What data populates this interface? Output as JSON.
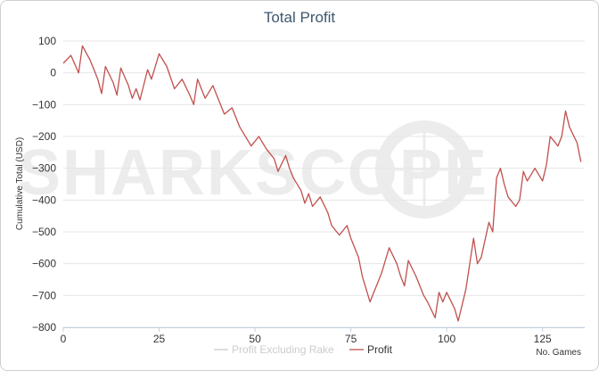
{
  "chart_data": {
    "type": "line",
    "title": "Total Profit",
    "ylabel": "Cumulative Total (USD)",
    "xlabel": "No. Games",
    "watermark": "SHARKSCOPE",
    "xlim": [
      0,
      136
    ],
    "ylim": [
      -800,
      100
    ],
    "xticks": [
      0,
      25,
      50,
      75,
      100,
      125
    ],
    "yticks": [
      100,
      0,
      -100,
      -200,
      -300,
      -400,
      -500,
      -600,
      -700,
      -800
    ],
    "xtick_labels": [
      "0",
      "25",
      "50",
      "75",
      "100",
      "125"
    ],
    "ytick_labels": [
      "100",
      "0",
      "−100",
      "−200",
      "−300",
      "−400",
      "−500",
      "−600",
      "−700",
      "−800"
    ],
    "grid": "horizontal",
    "legend_position": "bottom",
    "series": [
      {
        "name": "Profit Excluding Rake",
        "color": "#d4d4d4",
        "visible": false,
        "x": [],
        "y": []
      },
      {
        "name": "Profit",
        "color": "#c0504d",
        "visible": true,
        "x": [
          0,
          2,
          4,
          5,
          7,
          9,
          10,
          11,
          13,
          14,
          15,
          17,
          18,
          19,
          20,
          22,
          23,
          25,
          27,
          29,
          31,
          33,
          34,
          35,
          36,
          37,
          39,
          40,
          41,
          42,
          44,
          45,
          46,
          47,
          49,
          51,
          53,
          55,
          56,
          58,
          59,
          60,
          62,
          63,
          64,
          65,
          67,
          69,
          70,
          72,
          74,
          75,
          77,
          78,
          79,
          80,
          81,
          82,
          83,
          85,
          87,
          88,
          89,
          90,
          92,
          94,
          95,
          97,
          98,
          99,
          100,
          102,
          103,
          105,
          107,
          108,
          109,
          111,
          112,
          113,
          114,
          115,
          116,
          118,
          119,
          120,
          121,
          123,
          125,
          126,
          127,
          129,
          130,
          131,
          132,
          134,
          135
        ],
        "y": [
          30,
          55,
          0,
          85,
          40,
          -20,
          -65,
          20,
          -30,
          -70,
          15,
          -40,
          -80,
          -50,
          -85,
          10,
          -20,
          60,
          20,
          -50,
          -20,
          -70,
          -100,
          -20,
          -50,
          -80,
          -40,
          -70,
          -100,
          -130,
          -110,
          -140,
          -170,
          -190,
          -230,
          -200,
          -240,
          -270,
          -310,
          -260,
          -300,
          -330,
          -370,
          -410,
          -380,
          -420,
          -390,
          -440,
          -480,
          -510,
          -480,
          -520,
          -580,
          -640,
          -680,
          -720,
          -690,
          -660,
          -630,
          -550,
          -600,
          -640,
          -670,
          -590,
          -640,
          -700,
          -720,
          -770,
          -690,
          -720,
          -690,
          -740,
          -780,
          -680,
          -520,
          -600,
          -580,
          -470,
          -500,
          -330,
          -300,
          -350,
          -390,
          -420,
          -400,
          -310,
          -340,
          -300,
          -340,
          -290,
          -200,
          -230,
          -200,
          -120,
          -170,
          -220,
          -280
        ]
      }
    ]
  }
}
